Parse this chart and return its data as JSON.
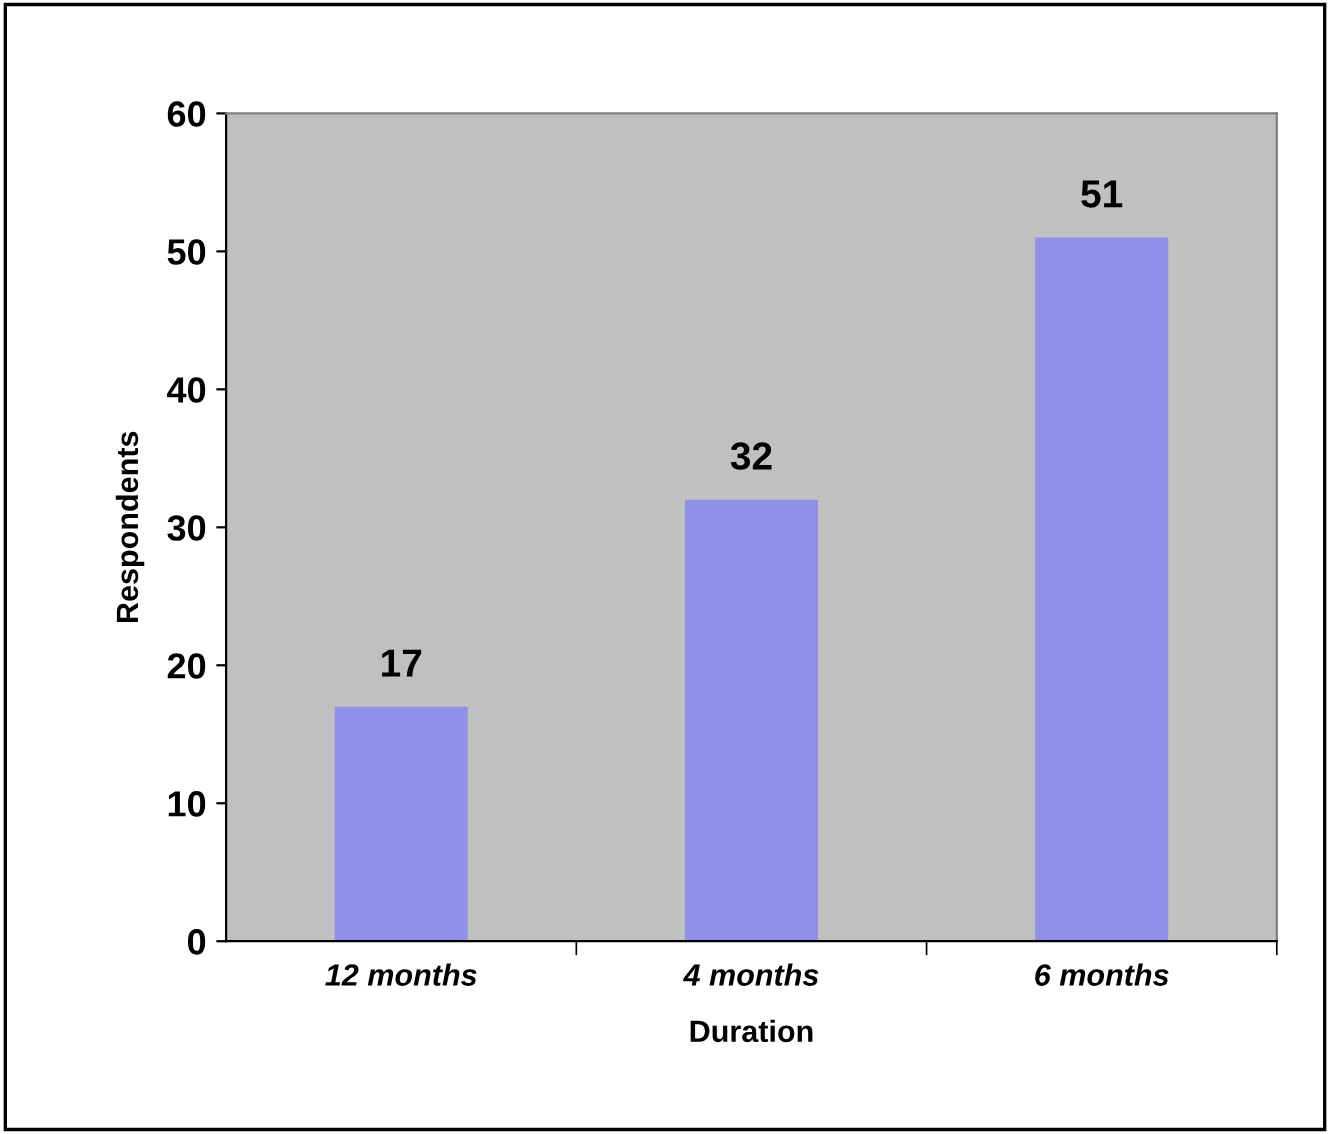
{
  "chart_data": {
    "type": "bar",
    "xlabel": "Duration",
    "ylabel": "Respondents",
    "categories": [
      "12 months",
      "4 months",
      "6 months"
    ],
    "values": [
      17,
      32,
      51
    ],
    "color": "#9090e8",
    "ylim": [
      0,
      60
    ],
    "yticks": [
      0,
      10,
      20,
      30,
      40,
      50,
      60
    ],
    "grid": false,
    "data_labels": true
  }
}
